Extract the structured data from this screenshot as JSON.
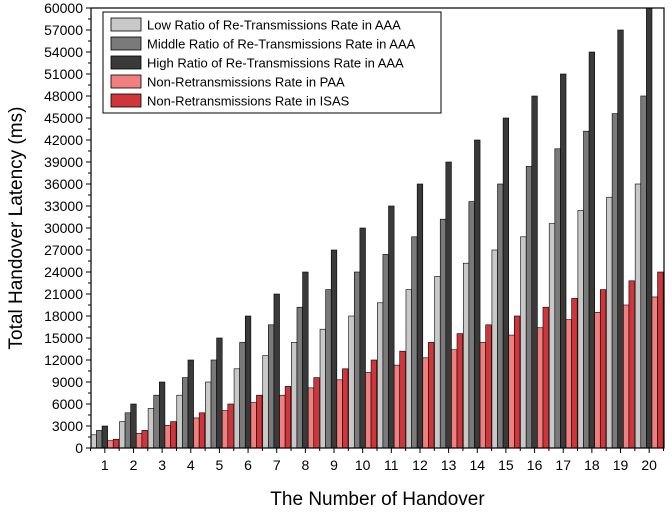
{
  "chart_data": {
    "type": "bar",
    "title": "",
    "xlabel": "The Number of Handover",
    "ylabel": "Total Handover Latency (ms)",
    "ylim": [
      0,
      60000
    ],
    "y_ticks": [
      0,
      3000,
      6000,
      9000,
      12000,
      15000,
      18000,
      21000,
      24000,
      27000,
      30000,
      33000,
      36000,
      39000,
      42000,
      45000,
      48000,
      51000,
      54000,
      57000,
      60000
    ],
    "categories": [
      "1",
      "2",
      "3",
      "4",
      "5",
      "6",
      "7",
      "8",
      "9",
      "10",
      "11",
      "12",
      "13",
      "14",
      "15",
      "16",
      "17",
      "18",
      "19",
      "20"
    ],
    "legend_position": "top-left",
    "grid": false,
    "series": [
      {
        "name": "Low Ratio of Re-Transmissions Rate in AAA",
        "color": "#c8c8c8",
        "values": [
          1800,
          3600,
          5400,
          7200,
          9000,
          10800,
          12600,
          14400,
          16200,
          18000,
          19800,
          21600,
          23400,
          25200,
          27000,
          28800,
          30600,
          32400,
          34200,
          36000
        ]
      },
      {
        "name": "Middle Ratio of Re-Transmissions Rate in AAA",
        "color": "#7a7a7a",
        "values": [
          2400,
          4800,
          7200,
          9600,
          12000,
          14400,
          16800,
          19200,
          21600,
          24000,
          26400,
          28800,
          31200,
          33600,
          36000,
          38400,
          40800,
          43200,
          45600,
          48000
        ]
      },
      {
        "name": "High Ratio of Re-Transmissions Rate in AAA",
        "color": "#3a3a3a",
        "values": [
          3000,
          6000,
          9000,
          12000,
          15000,
          18000,
          21000,
          24000,
          27000,
          30000,
          33000,
          36000,
          39000,
          42000,
          45000,
          48000,
          51000,
          54000,
          57000,
          60000
        ]
      },
      {
        "name": "Non-Retransmissions Rate in PAA",
        "color": "#f08080",
        "values": [
          1000,
          2000,
          3100,
          4100,
          5100,
          6200,
          7200,
          8200,
          9300,
          10300,
          11300,
          12300,
          13400,
          14400,
          15400,
          16400,
          17500,
          18500,
          19500,
          20600
        ]
      },
      {
        "name": "Non-Retransmissions Rate in ISAS",
        "color": "#d0353a",
        "values": [
          1200,
          2400,
          3600,
          4800,
          6000,
          7200,
          8400,
          9600,
          10800,
          12000,
          13200,
          14400,
          15600,
          16800,
          18000,
          19200,
          20400,
          21600,
          22800,
          24000
        ]
      }
    ]
  }
}
